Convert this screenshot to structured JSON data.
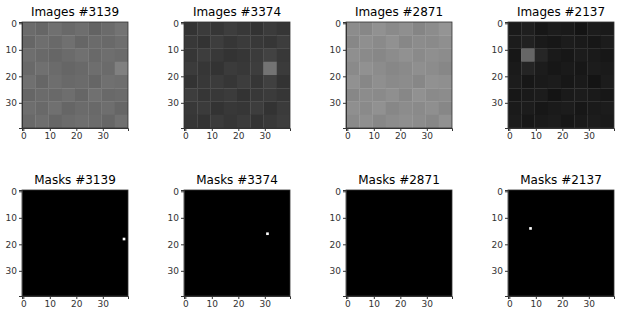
{
  "chart_data": [
    {
      "type": "heatmap",
      "title": "Images #3139",
      "xlim": [
        -0.5,
        39.5
      ],
      "ylim": [
        39.5,
        -0.5
      ],
      "xticks": [
        0,
        10,
        20,
        30
      ],
      "yticks": [
        0,
        10,
        20,
        30
      ],
      "zlim": [
        0,
        1
      ],
      "cells": [
        [
          0.42,
          0.4,
          0.44,
          0.41,
          0.43,
          0.39,
          0.42,
          0.45
        ],
        [
          0.4,
          0.43,
          0.41,
          0.44,
          0.4,
          0.42,
          0.41,
          0.43
        ],
        [
          0.43,
          0.41,
          0.4,
          0.42,
          0.44,
          0.41,
          0.43,
          0.42
        ],
        [
          0.41,
          0.44,
          0.42,
          0.4,
          0.41,
          0.43,
          0.42,
          0.5
        ],
        [
          0.44,
          0.4,
          0.43,
          0.41,
          0.42,
          0.4,
          0.44,
          0.43
        ],
        [
          0.4,
          0.42,
          0.41,
          0.43,
          0.4,
          0.44,
          0.41,
          0.42
        ],
        [
          0.43,
          0.41,
          0.44,
          0.4,
          0.42,
          0.41,
          0.43,
          0.4
        ],
        [
          0.41,
          0.43,
          0.4,
          0.42,
          0.43,
          0.42,
          0.4,
          0.44
        ]
      ]
    },
    {
      "type": "heatmap",
      "title": "Images #3374",
      "xlim": [
        -0.5,
        39.5
      ],
      "ylim": [
        39.5,
        -0.5
      ],
      "xticks": [
        0,
        10,
        20,
        30
      ],
      "yticks": [
        0,
        10,
        20,
        30
      ],
      "zlim": [
        0,
        1
      ],
      "cells": [
        [
          0.2,
          0.23,
          0.21,
          0.24,
          0.22,
          0.2,
          0.23,
          0.21
        ],
        [
          0.22,
          0.2,
          0.24,
          0.21,
          0.23,
          0.22,
          0.21,
          0.24
        ],
        [
          0.21,
          0.24,
          0.22,
          0.2,
          0.21,
          0.23,
          0.26,
          0.22
        ],
        [
          0.23,
          0.21,
          0.2,
          0.23,
          0.22,
          0.24,
          0.45,
          0.23
        ],
        [
          0.2,
          0.22,
          0.23,
          0.21,
          0.24,
          0.21,
          0.25,
          0.2
        ],
        [
          0.24,
          0.21,
          0.22,
          0.23,
          0.2,
          0.22,
          0.23,
          0.21
        ],
        [
          0.22,
          0.23,
          0.2,
          0.22,
          0.21,
          0.24,
          0.2,
          0.23
        ],
        [
          0.21,
          0.2,
          0.23,
          0.21,
          0.23,
          0.2,
          0.22,
          0.24
        ]
      ]
    },
    {
      "type": "heatmap",
      "title": "Images #2871",
      "xlim": [
        -0.5,
        39.5
      ],
      "ylim": [
        39.5,
        -0.5
      ],
      "xticks": [
        0,
        10,
        20,
        30
      ],
      "yticks": [
        0,
        10,
        20,
        30
      ],
      "zlim": [
        0,
        1
      ],
      "cells": [
        [
          0.55,
          0.53,
          0.57,
          0.54,
          0.56,
          0.52,
          0.55,
          0.58
        ],
        [
          0.53,
          0.56,
          0.54,
          0.57,
          0.53,
          0.55,
          0.54,
          0.56
        ],
        [
          0.56,
          0.54,
          0.53,
          0.55,
          0.57,
          0.54,
          0.56,
          0.55
        ],
        [
          0.54,
          0.57,
          0.55,
          0.53,
          0.54,
          0.56,
          0.55,
          0.53
        ],
        [
          0.57,
          0.53,
          0.56,
          0.54,
          0.55,
          0.53,
          0.57,
          0.56
        ],
        [
          0.53,
          0.55,
          0.54,
          0.56,
          0.53,
          0.57,
          0.54,
          0.55
        ],
        [
          0.56,
          0.54,
          0.57,
          0.53,
          0.55,
          0.54,
          0.56,
          0.53
        ],
        [
          0.54,
          0.56,
          0.53,
          0.55,
          0.56,
          0.55,
          0.53,
          0.57
        ]
      ]
    },
    {
      "type": "heatmap",
      "title": "Images #2137",
      "xlim": [
        -0.5,
        39.5
      ],
      "ylim": [
        39.5,
        -0.5
      ],
      "xticks": [
        0,
        10,
        20,
        30
      ],
      "yticks": [
        0,
        10,
        20,
        30
      ],
      "zlim": [
        0,
        1
      ],
      "cells": [
        [
          0.1,
          0.12,
          0.09,
          0.11,
          0.1,
          0.08,
          0.11,
          0.1
        ],
        [
          0.11,
          0.13,
          0.1,
          0.09,
          0.11,
          0.1,
          0.09,
          0.11
        ],
        [
          0.09,
          0.4,
          0.15,
          0.1,
          0.09,
          0.11,
          0.1,
          0.09
        ],
        [
          0.1,
          0.14,
          0.11,
          0.09,
          0.1,
          0.09,
          0.11,
          0.1
        ],
        [
          0.11,
          0.09,
          0.1,
          0.11,
          0.09,
          0.1,
          0.08,
          0.11
        ],
        [
          0.09,
          0.1,
          0.11,
          0.08,
          0.1,
          0.11,
          0.1,
          0.09
        ],
        [
          0.1,
          0.11,
          0.09,
          0.1,
          0.11,
          0.09,
          0.1,
          0.11
        ],
        [
          0.11,
          0.09,
          0.1,
          0.11,
          0.09,
          0.1,
          0.11,
          0.1
        ]
      ]
    },
    {
      "type": "mask",
      "title": "Masks #3139",
      "xlim": [
        -0.5,
        39.5
      ],
      "ylim": [
        39.5,
        -0.5
      ],
      "xticks": [
        0,
        10,
        20,
        30
      ],
      "yticks": [
        0,
        10,
        20,
        30
      ],
      "pixels": [
        [
          38,
          18
        ]
      ]
    },
    {
      "type": "mask",
      "title": "Masks #3374",
      "xlim": [
        -0.5,
        39.5
      ],
      "ylim": [
        39.5,
        -0.5
      ],
      "xticks": [
        0,
        10,
        20,
        30
      ],
      "yticks": [
        0,
        10,
        20,
        30
      ],
      "pixels": [
        [
          31,
          16
        ]
      ]
    },
    {
      "type": "mask",
      "title": "Masks #2871",
      "xlim": [
        -0.5,
        39.5
      ],
      "ylim": [
        39.5,
        -0.5
      ],
      "xticks": [
        0,
        10,
        20,
        30
      ],
      "yticks": [
        0,
        10,
        20,
        30
      ],
      "pixels": []
    },
    {
      "type": "mask",
      "title": "Masks #2137",
      "xlim": [
        -0.5,
        39.5
      ],
      "ylim": [
        39.5,
        -0.5
      ],
      "xticks": [
        0,
        10,
        20,
        30
      ],
      "yticks": [
        0,
        10,
        20,
        30
      ],
      "pixels": [
        [
          8,
          14
        ]
      ]
    }
  ]
}
